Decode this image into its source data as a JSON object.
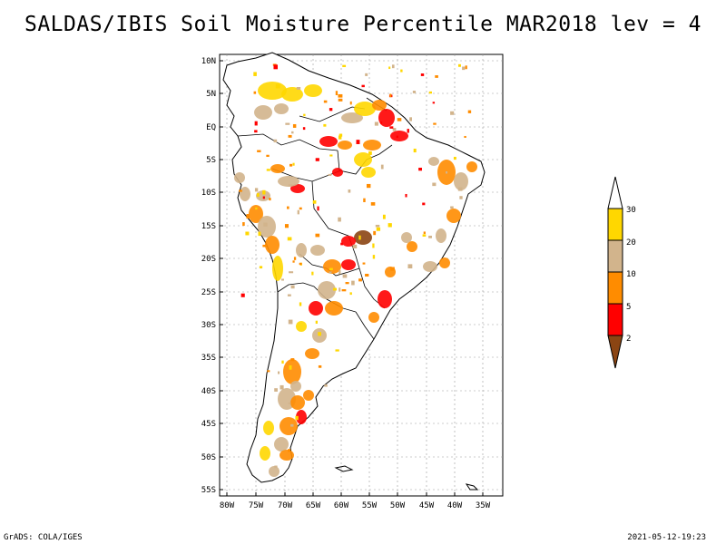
{
  "title": "SALDAS/IBIS Soil Moisture Percentile MAR2018 lev = 4",
  "lat_labels": [
    "10N",
    "5N",
    "EQ",
    "5S",
    "10S",
    "15S",
    "20S",
    "25S",
    "30S",
    "35S",
    "40S",
    "45S",
    "50S",
    "55S"
  ],
  "lon_labels": [
    "80W",
    "75W",
    "70W",
    "65W",
    "60W",
    "55W",
    "50W",
    "45W",
    "40W",
    "35W"
  ],
  "legend": {
    "labels": [
      "2",
      "5",
      "10",
      "20",
      "30"
    ],
    "colors": {
      "below_2": "#8b4513",
      "2_5": "#ff0000",
      "5_10": "#ff8c00",
      "10_20": "#d2b48c",
      "20_30": "#ffd700",
      "above_30": "#ffffff"
    }
  },
  "footer_left": "GrADS: COLA/IGES",
  "footer_right": "2021-05-12-19:23"
}
